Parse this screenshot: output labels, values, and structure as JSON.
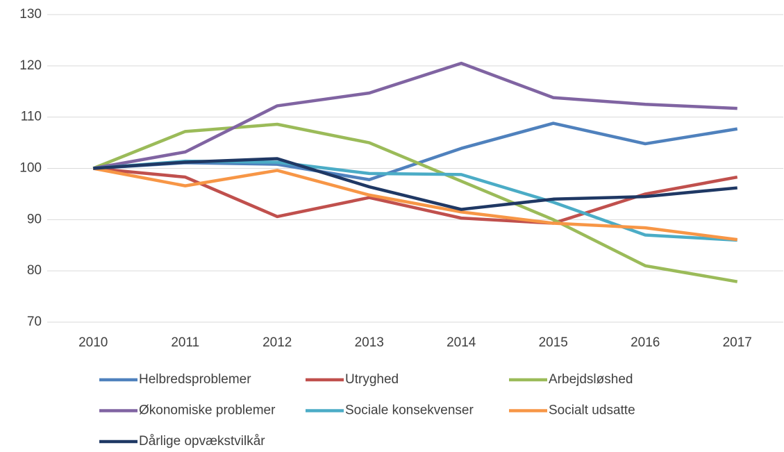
{
  "chart_data": {
    "type": "line",
    "categories": [
      "2010",
      "2011",
      "2012",
      "2013",
      "2014",
      "2015",
      "2016",
      "2017"
    ],
    "ylim": [
      70,
      130
    ],
    "yticks": [
      70,
      80,
      90,
      100,
      110,
      120,
      130
    ],
    "grid": true,
    "series": [
      {
        "name": "Helbredsproblemer",
        "color": "#4f81bd",
        "values": [
          100,
          101.1,
          100.8,
          97.8,
          103.9,
          108.8,
          104.8,
          107.7
        ]
      },
      {
        "name": "Utryghed",
        "color": "#c0504d",
        "values": [
          100,
          98.3,
          90.6,
          94.3,
          90.3,
          89.3,
          95,
          98.3
        ]
      },
      {
        "name": "Arbejdsløshed",
        "color": "#9bbb59",
        "values": [
          100,
          107.2,
          108.6,
          105,
          97.5,
          90,
          81,
          77.9
        ]
      },
      {
        "name": "Økonomiske problemer",
        "color": "#8064a2",
        "values": [
          100,
          103.2,
          112.2,
          114.7,
          120.5,
          113.8,
          112.5,
          111.7
        ]
      },
      {
        "name": "Sociale konsekvenser",
        "color": "#4bacc6",
        "values": [
          100,
          101.4,
          101.2,
          99,
          98.8,
          93.4,
          87,
          86
        ]
      },
      {
        "name": "Socialt udsatte",
        "color": "#f79646",
        "values": [
          100,
          96.6,
          99.6,
          94.8,
          91.5,
          89.3,
          88.4,
          86.1
        ]
      },
      {
        "name": "Dårlige opvækstvilkår",
        "color": "#1f3864",
        "values": [
          100,
          101.2,
          101.9,
          96.4,
          92,
          94,
          94.5,
          96.2
        ]
      }
    ]
  }
}
